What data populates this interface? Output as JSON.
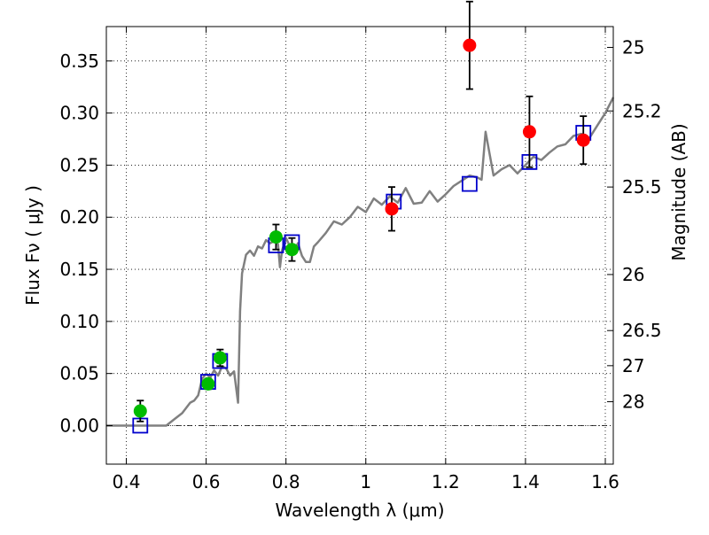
{
  "chart_data": {
    "type": "scatter",
    "xlabel": "Wavelength  λ (μm)",
    "ylabel": "Flux  Fν  ( μJy )",
    "y2label": "Magnitude (AB)",
    "xlim": [
      0.35,
      1.62
    ],
    "ylim": [
      -0.037,
      0.383
    ],
    "grid": true,
    "x_ticks": [
      0.4,
      0.6,
      0.8,
      1.0,
      1.2,
      1.4,
      1.6
    ],
    "x_tick_labels": [
      "0.4",
      "0.6",
      "0.8",
      "1",
      "1.2",
      "1.4",
      "1.6"
    ],
    "y_ticks": [
      0.0,
      0.05,
      0.1,
      0.15,
      0.2,
      0.25,
      0.3,
      0.35
    ],
    "y_tick_labels": [
      "0.00",
      "0.05",
      "0.10",
      "0.15",
      "0.20",
      "0.25",
      "0.30",
      "0.35"
    ],
    "y2_ticks": [
      {
        "label": "25",
        "flux": 0.363
      },
      {
        "label": "25.2",
        "flux": 0.302
      },
      {
        "label": "25.5",
        "flux": 0.229
      },
      {
        "label": "26",
        "flux": 0.145
      },
      {
        "label": "26.5",
        "flux": 0.0912
      },
      {
        "label": "27",
        "flux": 0.0575
      },
      {
        "label": "28",
        "flux": 0.0229
      }
    ],
    "series": [
      {
        "type": "line",
        "color": "#808080",
        "x": [
          0.35,
          0.4,
          0.45,
          0.5,
          0.52,
          0.54,
          0.56,
          0.57,
          0.58,
          0.59,
          0.6,
          0.61,
          0.62,
          0.63,
          0.64,
          0.65,
          0.66,
          0.67,
          0.68,
          0.685,
          0.69,
          0.7,
          0.71,
          0.72,
          0.73,
          0.74,
          0.75,
          0.76,
          0.77,
          0.78,
          0.785,
          0.79,
          0.8,
          0.81,
          0.82,
          0.83,
          0.84,
          0.85,
          0.86,
          0.87,
          0.88,
          0.9,
          0.92,
          0.94,
          0.96,
          0.98,
          1.0,
          1.02,
          1.04,
          1.06,
          1.08,
          1.1,
          1.12,
          1.14,
          1.16,
          1.18,
          1.2,
          1.22,
          1.24,
          1.26,
          1.28,
          1.29,
          1.3,
          1.32,
          1.34,
          1.36,
          1.38,
          1.4,
          1.42,
          1.44,
          1.46,
          1.48,
          1.5,
          1.52,
          1.54,
          1.56,
          1.58,
          1.6,
          1.62
        ],
        "y": [
          0.0,
          0.0,
          0.0,
          0.0,
          0.006,
          0.012,
          0.022,
          0.024,
          0.029,
          0.045,
          0.05,
          0.046,
          0.053,
          0.048,
          0.057,
          0.055,
          0.048,
          0.052,
          0.022,
          0.11,
          0.146,
          0.164,
          0.168,
          0.163,
          0.172,
          0.17,
          0.178,
          0.175,
          0.177,
          0.174,
          0.152,
          0.168,
          0.18,
          0.172,
          0.168,
          0.175,
          0.163,
          0.157,
          0.157,
          0.172,
          0.176,
          0.185,
          0.196,
          0.193,
          0.2,
          0.21,
          0.205,
          0.218,
          0.212,
          0.22,
          0.214,
          0.228,
          0.213,
          0.214,
          0.225,
          0.215,
          0.222,
          0.23,
          0.235,
          0.24,
          0.238,
          0.236,
          0.282,
          0.24,
          0.246,
          0.25,
          0.242,
          0.25,
          0.258,
          0.255,
          0.262,
          0.268,
          0.27,
          0.278,
          0.28,
          0.276,
          0.288,
          0.3,
          0.315
        ]
      },
      {
        "type": "open-squares",
        "color": "#0000cc",
        "x": [
          0.435,
          0.605,
          0.635,
          0.775,
          0.815,
          1.07,
          1.26,
          1.41,
          1.545
        ],
        "y": [
          0.0,
          0.042,
          0.062,
          0.173,
          0.176,
          0.215,
          0.232,
          0.253,
          0.281
        ]
      },
      {
        "type": "points",
        "color": "#00bb00",
        "x": [
          0.435,
          0.605,
          0.635,
          0.775,
          0.815
        ],
        "y": [
          0.014,
          0.04,
          0.065,
          0.181,
          0.169
        ],
        "err": [
          0.01,
          0.005,
          0.008,
          0.012,
          0.011
        ]
      },
      {
        "type": "points",
        "color": "#ff0000",
        "x": [
          1.065,
          1.26,
          1.41,
          1.545
        ],
        "y": [
          0.208,
          0.365,
          0.282,
          0.274
        ],
        "err": [
          0.021,
          0.042,
          0.034,
          0.023
        ]
      }
    ]
  }
}
